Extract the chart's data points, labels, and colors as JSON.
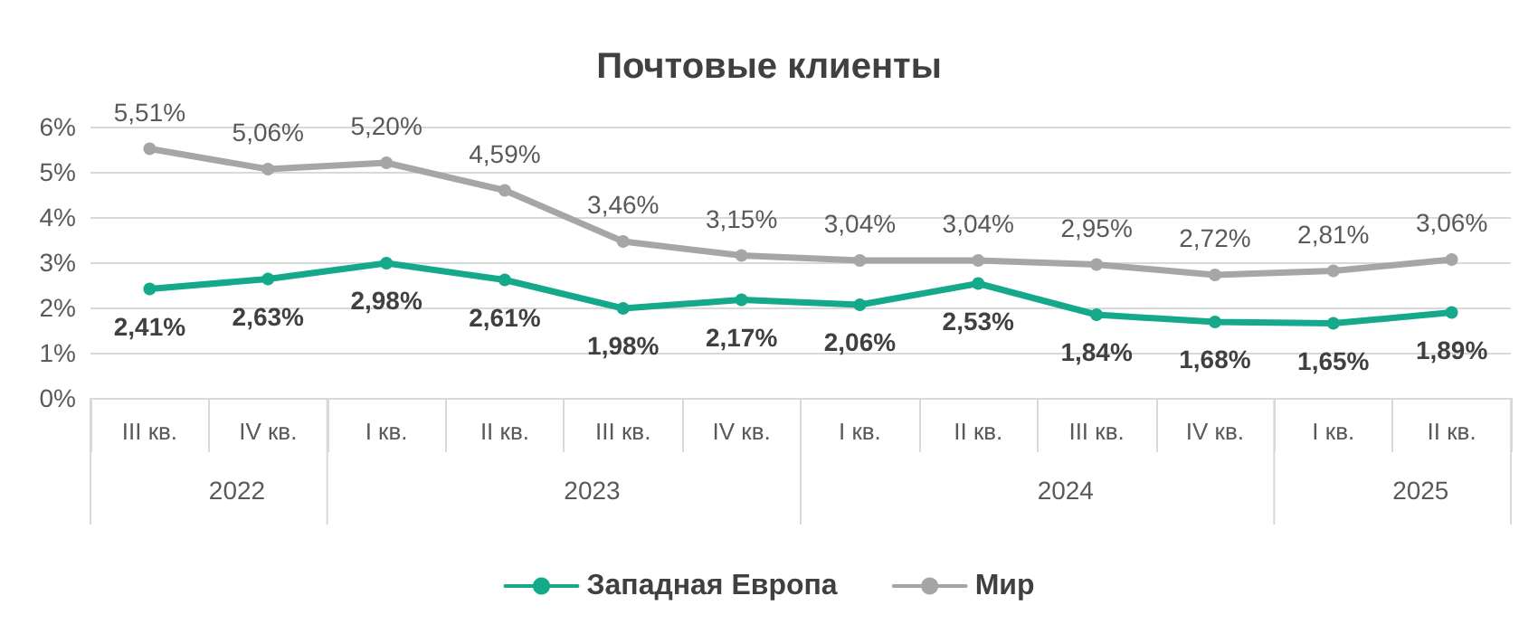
{
  "chart_data": {
    "type": "line",
    "title": "Почтовые клиенты",
    "categories": [
      "III кв.",
      "IV кв.",
      "I кв.",
      "II кв.",
      "III кв.",
      "IV кв.",
      "I кв.",
      "II кв.",
      "III кв.",
      "IV кв.",
      "I кв.",
      "II кв."
    ],
    "annotations": [
      "2022",
      "2023",
      "2024",
      "2025"
    ],
    "series": [
      {
        "name": "Западная Европа",
        "color": "#14a98b",
        "values": [
          2.41,
          2.63,
          2.98,
          2.61,
          1.98,
          2.17,
          2.06,
          2.53,
          1.84,
          1.68,
          1.65,
          1.89
        ],
        "value_labels": [
          "2,41%",
          "2,63%",
          "2,98%",
          "2,61%",
          "1,98%",
          "2,17%",
          "2,06%",
          "2,53%",
          "1,84%",
          "1,68%",
          "1,65%",
          "1,89%"
        ]
      },
      {
        "name": "Мир",
        "color": "#a6a6a6",
        "values": [
          5.51,
          5.06,
          5.2,
          4.59,
          3.46,
          3.15,
          3.04,
          3.04,
          2.95,
          2.72,
          2.81,
          3.06
        ],
        "value_labels": [
          "5,51%",
          "5,06%",
          "5,20%",
          "4,59%",
          "3,46%",
          "3,15%",
          "3,04%",
          "3,04%",
          "2,95%",
          "2,72%",
          "2,81%",
          "3,06%"
        ]
      }
    ],
    "ylim": [
      0,
      6
    ],
    "yticks": [
      {
        "value": 0,
        "label": "0%"
      },
      {
        "value": 1,
        "label": "1%"
      },
      {
        "value": 2,
        "label": "2%"
      },
      {
        "value": 3,
        "label": "3%"
      },
      {
        "value": 4,
        "label": "4%"
      },
      {
        "value": 5,
        "label": "5%"
      },
      {
        "value": 6,
        "label": "6%"
      }
    ],
    "grid": "y",
    "legend": "bottom",
    "marker": "circle",
    "line_style": "solid"
  }
}
